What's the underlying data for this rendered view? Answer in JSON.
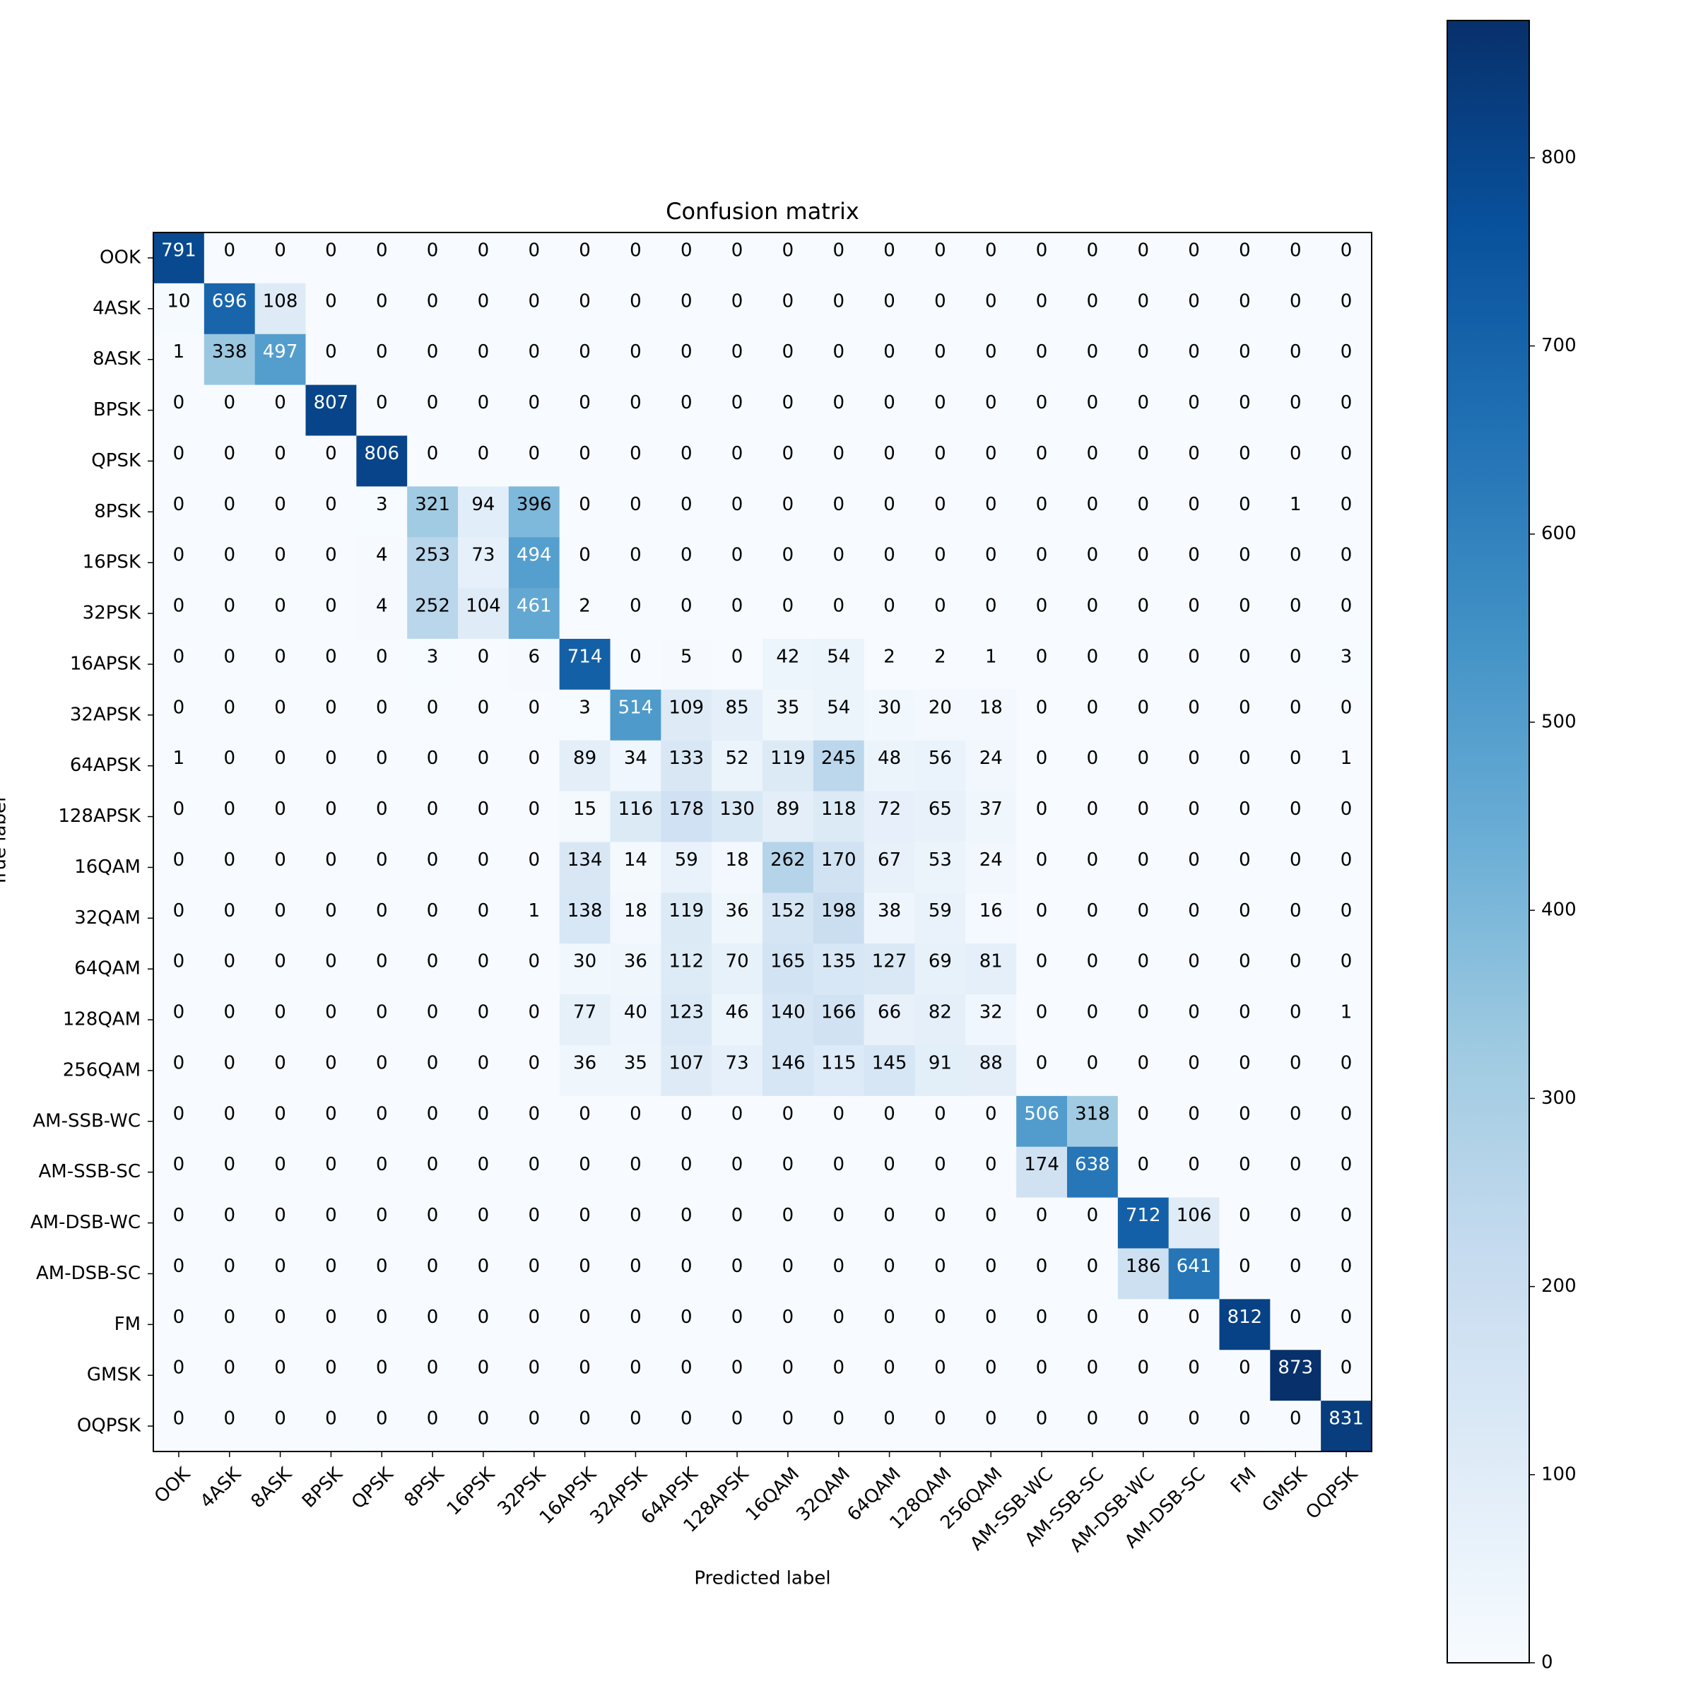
{
  "chart_data": {
    "type": "heatmap",
    "title": "Confusion matrix",
    "x_label": "Predicted label",
    "y_label": "True label",
    "categories": [
      "OOK",
      "4ASK",
      "8ASK",
      "BPSK",
      "QPSK",
      "8PSK",
      "16PSK",
      "32PSK",
      "16APSK",
      "32APSK",
      "64APSK",
      "128APSK",
      "16QAM",
      "32QAM",
      "64QAM",
      "128QAM",
      "256QAM",
      "AM-SSB-WC",
      "AM-SSB-SC",
      "AM-DSB-WC",
      "AM-DSB-SC",
      "FM",
      "GMSK",
      "OQPSK"
    ],
    "colormap": [
      "#f7fbff",
      "#deebf7",
      "#c6dbef",
      "#9ecae1",
      "#6baed6",
      "#4292c6",
      "#2171b5",
      "#08519c",
      "#08306b"
    ],
    "zlim": [
      0,
      873
    ],
    "zticks": [
      0,
      100,
      200,
      300,
      400,
      500,
      600,
      700,
      800
    ],
    "matrix": [
      [
        791,
        0,
        0,
        0,
        0,
        0,
        0,
        0,
        0,
        0,
        0,
        0,
        0,
        0,
        0,
        0,
        0,
        0,
        0,
        0,
        0,
        0,
        0,
        0
      ],
      [
        10,
        696,
        108,
        0,
        0,
        0,
        0,
        0,
        0,
        0,
        0,
        0,
        0,
        0,
        0,
        0,
        0,
        0,
        0,
        0,
        0,
        0,
        0,
        0
      ],
      [
        1,
        338,
        497,
        0,
        0,
        0,
        0,
        0,
        0,
        0,
        0,
        0,
        0,
        0,
        0,
        0,
        0,
        0,
        0,
        0,
        0,
        0,
        0,
        0
      ],
      [
        0,
        0,
        0,
        807,
        0,
        0,
        0,
        0,
        0,
        0,
        0,
        0,
        0,
        0,
        0,
        0,
        0,
        0,
        0,
        0,
        0,
        0,
        0,
        0
      ],
      [
        0,
        0,
        0,
        0,
        806,
        0,
        0,
        0,
        0,
        0,
        0,
        0,
        0,
        0,
        0,
        0,
        0,
        0,
        0,
        0,
        0,
        0,
        0,
        0
      ],
      [
        0,
        0,
        0,
        0,
        3,
        321,
        94,
        396,
        0,
        0,
        0,
        0,
        0,
        0,
        0,
        0,
        0,
        0,
        0,
        0,
        0,
        0,
        1,
        0
      ],
      [
        0,
        0,
        0,
        0,
        4,
        253,
        73,
        494,
        0,
        0,
        0,
        0,
        0,
        0,
        0,
        0,
        0,
        0,
        0,
        0,
        0,
        0,
        0,
        0
      ],
      [
        0,
        0,
        0,
        0,
        4,
        252,
        104,
        461,
        2,
        0,
        0,
        0,
        0,
        0,
        0,
        0,
        0,
        0,
        0,
        0,
        0,
        0,
        0,
        0
      ],
      [
        0,
        0,
        0,
        0,
        0,
        3,
        0,
        6,
        714,
        0,
        5,
        0,
        42,
        54,
        2,
        2,
        1,
        0,
        0,
        0,
        0,
        0,
        0,
        3
      ],
      [
        0,
        0,
        0,
        0,
        0,
        0,
        0,
        0,
        3,
        514,
        109,
        85,
        35,
        54,
        30,
        20,
        18,
        0,
        0,
        0,
        0,
        0,
        0,
        0
      ],
      [
        1,
        0,
        0,
        0,
        0,
        0,
        0,
        0,
        89,
        34,
        133,
        52,
        119,
        245,
        48,
        56,
        24,
        0,
        0,
        0,
        0,
        0,
        0,
        1
      ],
      [
        0,
        0,
        0,
        0,
        0,
        0,
        0,
        0,
        15,
        116,
        178,
        130,
        89,
        118,
        72,
        65,
        37,
        0,
        0,
        0,
        0,
        0,
        0,
        0
      ],
      [
        0,
        0,
        0,
        0,
        0,
        0,
        0,
        0,
        134,
        14,
        59,
        18,
        262,
        170,
        67,
        53,
        24,
        0,
        0,
        0,
        0,
        0,
        0,
        0
      ],
      [
        0,
        0,
        0,
        0,
        0,
        0,
        0,
        1,
        138,
        18,
        119,
        36,
        152,
        198,
        38,
        59,
        16,
        0,
        0,
        0,
        0,
        0,
        0,
        0
      ],
      [
        0,
        0,
        0,
        0,
        0,
        0,
        0,
        0,
        30,
        36,
        112,
        70,
        165,
        135,
        127,
        69,
        81,
        0,
        0,
        0,
        0,
        0,
        0,
        0
      ],
      [
        0,
        0,
        0,
        0,
        0,
        0,
        0,
        0,
        77,
        40,
        123,
        46,
        140,
        166,
        66,
        82,
        32,
        0,
        0,
        0,
        0,
        0,
        0,
        1
      ],
      [
        0,
        0,
        0,
        0,
        0,
        0,
        0,
        0,
        36,
        35,
        107,
        73,
        146,
        115,
        145,
        91,
        88,
        0,
        0,
        0,
        0,
        0,
        0,
        0
      ],
      [
        0,
        0,
        0,
        0,
        0,
        0,
        0,
        0,
        0,
        0,
        0,
        0,
        0,
        0,
        0,
        0,
        0,
        506,
        318,
        0,
        0,
        0,
        0,
        0
      ],
      [
        0,
        0,
        0,
        0,
        0,
        0,
        0,
        0,
        0,
        0,
        0,
        0,
        0,
        0,
        0,
        0,
        0,
        174,
        638,
        0,
        0,
        0,
        0,
        0
      ],
      [
        0,
        0,
        0,
        0,
        0,
        0,
        0,
        0,
        0,
        0,
        0,
        0,
        0,
        0,
        0,
        0,
        0,
        0,
        0,
        712,
        106,
        0,
        0,
        0
      ],
      [
        0,
        0,
        0,
        0,
        0,
        0,
        0,
        0,
        0,
        0,
        0,
        0,
        0,
        0,
        0,
        0,
        0,
        0,
        0,
        186,
        641,
        0,
        0,
        0
      ],
      [
        0,
        0,
        0,
        0,
        0,
        0,
        0,
        0,
        0,
        0,
        0,
        0,
        0,
        0,
        0,
        0,
        0,
        0,
        0,
        0,
        0,
        812,
        0,
        0
      ],
      [
        0,
        0,
        0,
        0,
        0,
        0,
        0,
        0,
        0,
        0,
        0,
        0,
        0,
        0,
        0,
        0,
        0,
        0,
        0,
        0,
        0,
        0,
        873,
        0
      ],
      [
        0,
        0,
        0,
        0,
        0,
        0,
        0,
        0,
        0,
        0,
        0,
        0,
        0,
        0,
        0,
        0,
        0,
        0,
        0,
        0,
        0,
        0,
        0,
        831
      ]
    ]
  }
}
